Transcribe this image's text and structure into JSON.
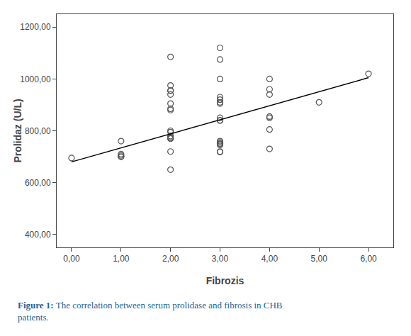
{
  "chart_data": {
    "type": "scatter",
    "xlabel": "Fibrozis",
    "ylabel": "Prolidaz (U/L)",
    "series": [
      {
        "type": "scatter",
        "color": "#555555",
        "marker": "circle-open",
        "x": [
          0.0,
          1.0,
          1.0,
          1.0,
          1.0,
          1.0,
          2.0,
          2.0,
          2.0,
          2.0,
          2.0,
          2.0,
          2.0,
          2.0,
          2.0,
          2.0,
          2.0,
          2.0,
          2.0,
          2.0,
          2.0,
          2.0,
          3.0,
          3.0,
          3.0,
          3.0,
          3.0,
          3.0,
          3.0,
          3.0,
          3.0,
          3.0,
          3.0,
          3.0,
          3.0,
          3.0,
          3.0,
          3.0,
          3.0,
          4.0,
          4.0,
          4.0,
          4.0,
          4.0,
          4.0,
          4.0,
          5.0,
          6.0
        ],
        "values": [
          695.0,
          760.0,
          700.0,
          700.0,
          705.0,
          710.0,
          1085.0,
          975.0,
          955.0,
          955.0,
          940.0,
          905.0,
          885.0,
          880.0,
          800.0,
          795.0,
          780.0,
          775.0,
          770.0,
          770.0,
          720.0,
          650.0,
          1120.0,
          1075.0,
          1000.0,
          930.0,
          920.0,
          910.0,
          905.0,
          850.0,
          840.0,
          840.0,
          760.0,
          755.0,
          750.0,
          750.0,
          745.0,
          720.0,
          718.0,
          1000.0,
          960.0,
          940.0,
          855.0,
          850.0,
          805.0,
          730.0,
          910.0,
          1020.0
        ]
      },
      {
        "type": "line",
        "color": "black",
        "line_style": "solid",
        "x": [
          0.0,
          6.0
        ],
        "values": [
          680.0,
          1005.0
        ]
      }
    ],
    "xlim": [
      -0.3,
      6.5
    ],
    "ylim": [
      350.0,
      1250.0
    ],
    "xticks": [
      {
        "value": 0.0,
        "label": "0,00"
      },
      {
        "value": 1.0,
        "label": "1,00"
      },
      {
        "value": 2.0,
        "label": "2,00"
      },
      {
        "value": 3.0,
        "label": "3,00"
      },
      {
        "value": 4.0,
        "label": "4,00"
      },
      {
        "value": 5.0,
        "label": "5,00"
      },
      {
        "value": 6.0,
        "label": "6,00"
      }
    ],
    "yticks": [
      {
        "value": 400.0,
        "label": "400,00"
      },
      {
        "value": 600.0,
        "label": "600,00"
      },
      {
        "value": 800.0,
        "label": "800,00"
      },
      {
        "value": 1000.0,
        "label": "1000,00"
      },
      {
        "value": 1200.0,
        "label": "1200,00"
      }
    ],
    "grid": false,
    "annotations": [
      {
        "text": "Figure 1:",
        "color": "#1a6496"
      },
      {
        "text": "The correlation between serum prolidase and fibrosis in CHB\npatients.",
        "color": "#1a6496"
      }
    ]
  }
}
